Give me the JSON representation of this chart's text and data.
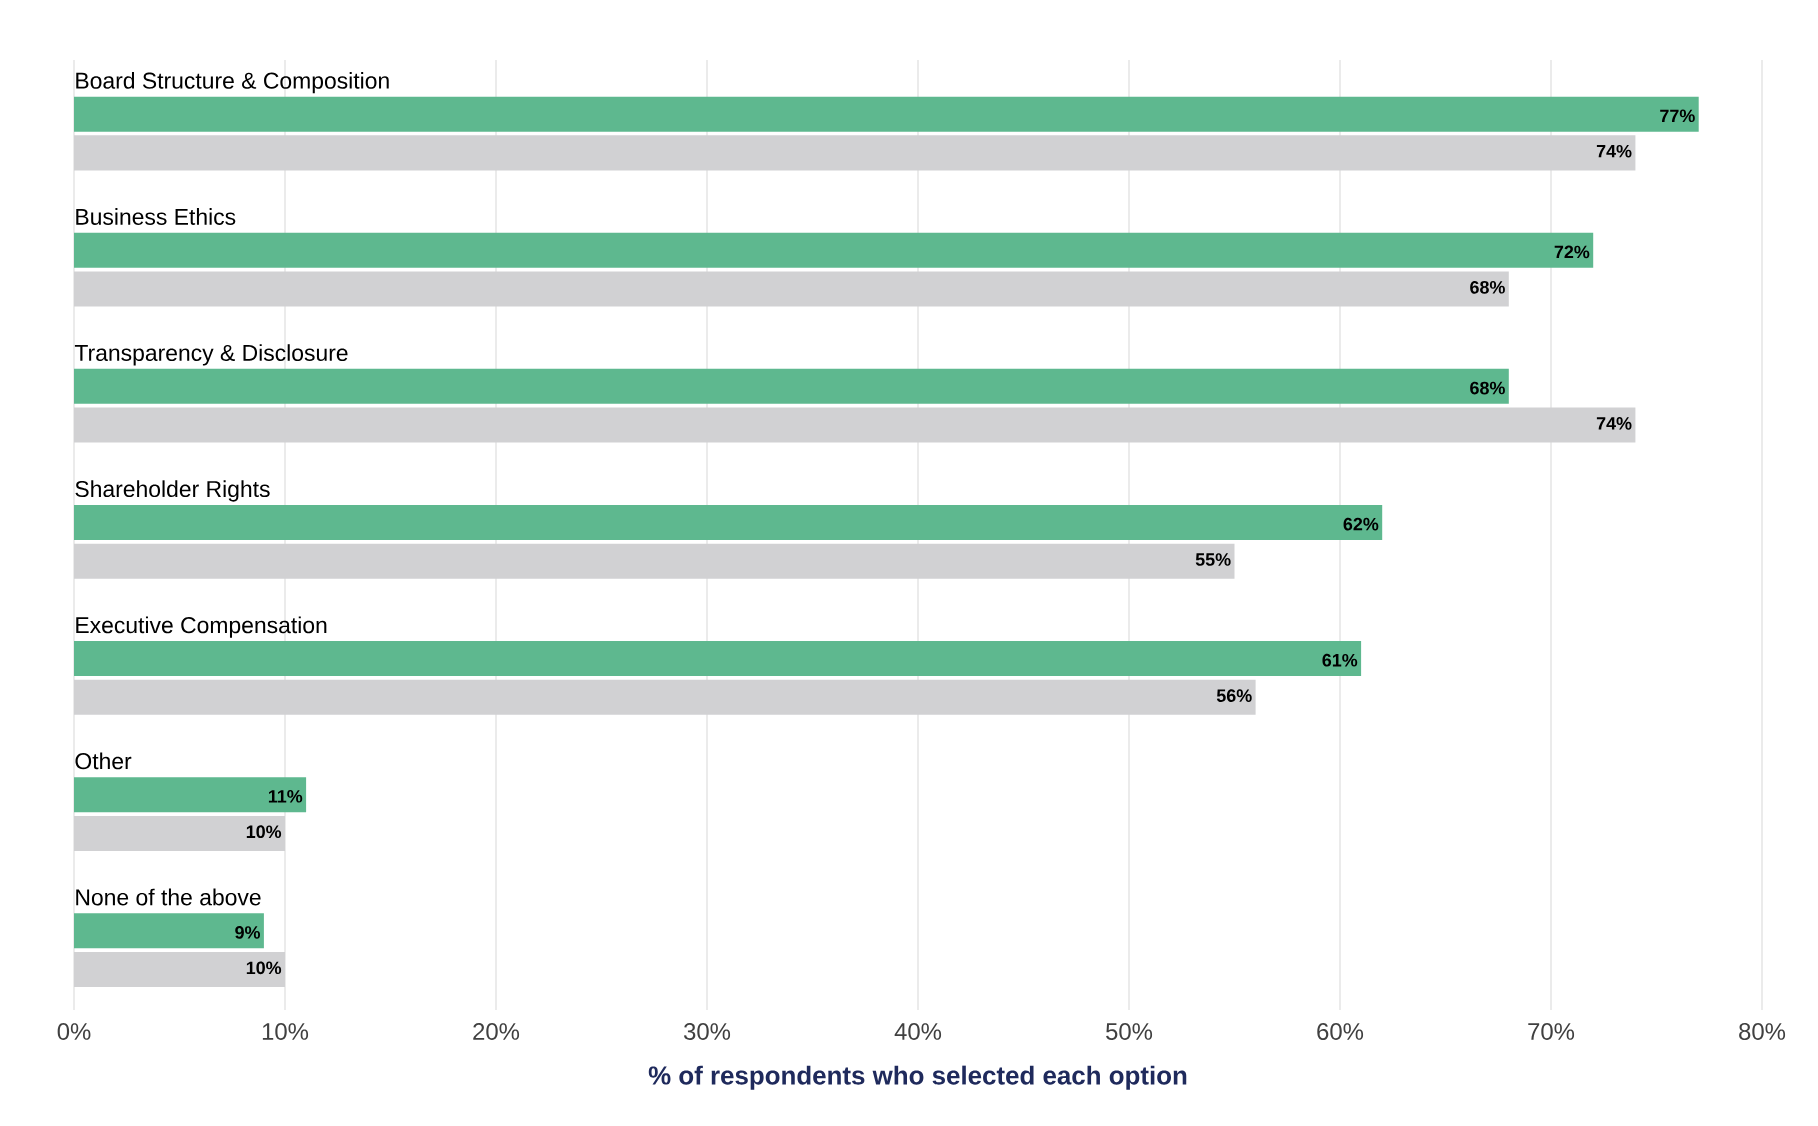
{
  "chart_data": {
    "type": "bar",
    "orientation": "horizontal",
    "xlabel": "% of respondents who selected each option",
    "categories": [
      "Board Structure & Composition",
      "Business Ethics",
      "Transparency & Disclosure",
      "Shareholder Rights",
      "Executive Compensation",
      "Other",
      "None of the above"
    ],
    "series": [
      {
        "color": "#5eb88f",
        "values": [
          77,
          72,
          68,
          62,
          61,
          11,
          9
        ],
        "value_labels": [
          "77%",
          "72%",
          "68%",
          "62%",
          "61%",
          "11%",
          "9%"
        ]
      },
      {
        "color": "#d1d1d3",
        "values": [
          74,
          68,
          74,
          55,
          56,
          10,
          10
        ],
        "value_labels": [
          "74%",
          "68%",
          "74%",
          "55%",
          "56%",
          "10%",
          "10%"
        ]
      }
    ],
    "xlim": [
      0,
      80
    ],
    "xticks": [
      {
        "value": 0,
        "label": "0%"
      },
      {
        "value": 10,
        "label": "10%"
      },
      {
        "value": 20,
        "label": "20%"
      },
      {
        "value": 30,
        "label": "30%"
      },
      {
        "value": 40,
        "label": "40%"
      },
      {
        "value": 50,
        "label": "50%"
      },
      {
        "value": 60,
        "label": "60%"
      },
      {
        "value": 70,
        "label": "70%"
      },
      {
        "value": 80,
        "label": "80%"
      }
    ],
    "grid": "x"
  }
}
